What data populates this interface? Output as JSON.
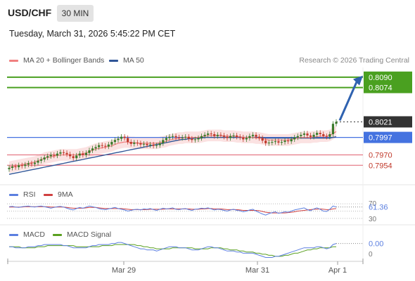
{
  "header": {
    "symbol": "USD/CHF",
    "timeframe": "30 MIN",
    "datetime": "Tuesday, March 31, 2026 5:45:22 PM CET"
  },
  "credit": "Research © 2026 Trading Central",
  "colors": {
    "ma20": "#f08080",
    "ma50": "#2f5597",
    "bollinger_fill": "#f9d5d5",
    "target_line": "#4aa020",
    "current_line": "#4472e0",
    "support_line": "#e06070",
    "arrow": "#2f62b0",
    "candle_up": "#3a7a2a",
    "candle_down": "#c0392b",
    "rsi": "#5b7fe0",
    "rsi_ma": "#d04040",
    "macd": "#5b7fe0",
    "macd_signal": "#5aa020"
  },
  "chart_data": {
    "type": "candlestick",
    "title": "USD/CHF 30 MIN",
    "x_ticks": [
      "Mar 29",
      "Mar 31",
      "Apr 1"
    ],
    "legend": [
      {
        "name": "MA 20 + Bollinger Bands",
        "color": "#f08080"
      },
      {
        "name": "MA 50",
        "color": "#2f5597"
      }
    ],
    "price_range": [
      0.7925,
      0.8105
    ],
    "levels": [
      {
        "label": "0.8090",
        "value": 0.809,
        "kind": "target"
      },
      {
        "label": "0.8074",
        "value": 0.8074,
        "kind": "target"
      },
      {
        "label": "0.8021",
        "value": 0.8021,
        "kind": "current"
      },
      {
        "label": "0.7997",
        "value": 0.7997,
        "kind": "pivot"
      },
      {
        "label": "0.7970",
        "value": 0.797,
        "kind": "support"
      },
      {
        "label": "0.7954",
        "value": 0.7954,
        "kind": "support"
      }
    ],
    "close_series": [
      0.795,
      0.7952,
      0.7951,
      0.7954,
      0.7953,
      0.7955,
      0.7957,
      0.7956,
      0.7958,
      0.7961,
      0.7963,
      0.7966,
      0.7968,
      0.797,
      0.7969,
      0.7972,
      0.7974,
      0.7973,
      0.7971,
      0.7968,
      0.7965,
      0.7969,
      0.7972,
      0.797,
      0.7973,
      0.7977,
      0.798,
      0.7982,
      0.7985,
      0.7984,
      0.7983,
      0.7986,
      0.799,
      0.7993,
      0.7995,
      0.7998,
      0.7996,
      0.799,
      0.7987,
      0.7989,
      0.7988,
      0.7986,
      0.7987,
      0.7985,
      0.7986,
      0.7984,
      0.7985,
      0.7988,
      0.7993,
      0.7996,
      0.7998,
      0.7999,
      0.7997,
      0.7996,
      0.7997,
      0.7998,
      0.7995,
      0.7993,
      0.7994,
      0.7996,
      0.7999,
      0.8001,
      0.8003,
      0.8002,
      0.7999,
      0.8001,
      0.8,
      0.7998,
      0.7996,
      0.7999,
      0.8,
      0.7998,
      0.7997,
      0.7994,
      0.7996,
      0.7999,
      0.8001,
      0.7998,
      0.7996,
      0.7992,
      0.7988,
      0.7989,
      0.799,
      0.7991,
      0.7989,
      0.799,
      0.7992,
      0.7991,
      0.7994,
      0.7997,
      0.7999,
      0.8001,
      0.8003,
      0.8,
      0.7998,
      0.8001,
      0.8004,
      0.8002,
      0.7999,
      0.7998,
      0.8002,
      0.8018,
      0.8021
    ],
    "ma20_series": [
      0.7951,
      0.7952,
      0.7953,
      0.7954,
      0.7955,
      0.7956,
      0.7957,
      0.7958,
      0.7959,
      0.7961,
      0.7963,
      0.7965,
      0.7966,
      0.7967,
      0.7968,
      0.7969,
      0.797,
      0.797,
      0.797,
      0.797,
      0.797,
      0.797,
      0.7971,
      0.7972,
      0.7973,
      0.7975,
      0.7977,
      0.7979,
      0.798,
      0.7981,
      0.7982,
      0.7983,
      0.7984,
      0.7986,
      0.7988,
      0.7989,
      0.799,
      0.799,
      0.7989,
      0.7989,
      0.7988,
      0.7988,
      0.7988,
      0.7988,
      0.7988,
      0.7988,
      0.7988,
      0.7989,
      0.799,
      0.7991,
      0.7993,
      0.7994,
      0.7995,
      0.7996,
      0.7996,
      0.7997,
      0.7997,
      0.7997,
      0.7997,
      0.7997,
      0.7998,
      0.7999,
      0.8,
      0.8,
      0.8,
      0.8,
      0.8,
      0.7999,
      0.7999,
      0.7999,
      0.7999,
      0.7998,
      0.7998,
      0.7997,
      0.7997,
      0.7997,
      0.7997,
      0.7996,
      0.7996,
      0.7995,
      0.7994,
      0.7993,
      0.7993,
      0.7993,
      0.7993,
      0.7993,
      0.7993,
      0.7993,
      0.7994,
      0.7995,
      0.7996,
      0.7997,
      0.7997,
      0.7997,
      0.7997,
      0.7998,
      0.7998,
      0.7999,
      0.7999,
      0.7999,
      0.8,
      0.8003,
      0.8006
    ],
    "ma50_series": [
      0.794,
      0.7941,
      0.7942,
      0.7943,
      0.7944,
      0.7945,
      0.7946,
      0.7947,
      0.7948,
      0.7949,
      0.795,
      0.7951,
      0.7952,
      0.7953,
      0.7954,
      0.7955,
      0.7956,
      0.7957,
      0.7958,
      0.7959,
      0.796,
      0.7961,
      0.7962,
      0.7963,
      0.7964,
      0.7965,
      0.7966,
      0.7967,
      0.7968,
      0.7969,
      0.797,
      0.7971,
      0.7972,
      0.7973,
      0.7974,
      0.7975,
      0.7976,
      0.7977,
      0.7978,
      0.7979,
      0.798,
      0.7981,
      0.7982,
      0.7983,
      0.7984,
      0.7985,
      0.7986,
      0.7987,
      0.7988,
      0.7989,
      0.799,
      0.7991,
      0.7992,
      0.7993,
      0.7994,
      0.7994,
      0.7995,
      0.7995,
      0.7996,
      0.7996,
      0.7996,
      0.7997,
      0.7997,
      0.7997,
      0.7997,
      0.7997,
      0.7997,
      0.7997,
      0.7997,
      0.7997,
      0.7997,
      0.7997,
      0.7997,
      0.7997,
      0.7997,
      0.7997,
      0.7997,
      0.7997,
      0.7997,
      0.7997,
      0.7996,
      0.7996,
      0.7996,
      0.7996,
      0.7996,
      0.7996,
      0.7996,
      0.7996,
      0.7996,
      0.7996,
      0.7996,
      0.7996,
      0.7996,
      0.7996,
      0.7996,
      0.7996,
      0.7996,
      0.7996,
      0.7996,
      0.7996,
      0.7996,
      0.7997,
      0.7998
    ],
    "rsi": {
      "legend": [
        {
          "name": "RSI",
          "color": "#5b7fe0"
        },
        {
          "name": "9MA",
          "color": "#d04040"
        }
      ],
      "levels": [
        "70",
        "30"
      ],
      "current_label": "61.36",
      "range": [
        30,
        70
      ],
      "series": [
        62,
        63,
        61,
        60,
        62,
        63,
        64,
        62,
        61,
        63,
        64,
        62,
        60,
        58,
        60,
        62,
        63,
        61,
        58,
        55,
        53,
        57,
        60,
        58,
        61,
        64,
        62,
        60,
        57,
        55,
        54,
        56,
        58,
        60,
        57,
        55,
        53,
        50,
        52,
        54,
        55,
        53,
        56,
        55,
        57,
        54,
        52,
        55,
        58,
        56,
        57,
        59,
        55,
        54,
        56,
        57,
        54,
        52,
        55,
        56,
        58,
        57,
        59,
        56,
        53,
        55,
        54,
        52,
        50,
        53,
        55,
        52,
        51,
        48,
        50,
        53,
        55,
        50,
        46,
        42,
        39,
        43,
        46,
        48,
        44,
        46,
        48,
        47,
        50,
        53,
        55,
        57,
        59,
        54,
        51,
        56,
        59,
        55,
        50,
        49,
        55,
        64,
        61.36
      ],
      "ma_series": [
        61,
        61,
        61,
        61,
        61,
        62,
        62,
        62,
        62,
        62,
        62,
        62,
        62,
        61,
        61,
        61,
        61,
        61,
        60,
        59,
        58,
        58,
        58,
        58,
        59,
        60,
        60,
        60,
        59,
        58,
        57,
        57,
        57,
        57,
        57,
        57,
        56,
        55,
        54,
        54,
        54,
        54,
        54,
        54,
        55,
        55,
        55,
        55,
        55,
        56,
        56,
        56,
        56,
        56,
        56,
        56,
        56,
        55,
        55,
        55,
        56,
        56,
        57,
        57,
        56,
        56,
        56,
        55,
        54,
        54,
        54,
        54,
        53,
        52,
        52,
        52,
        52,
        52,
        51,
        49,
        47,
        46,
        45,
        45,
        45,
        45,
        45,
        46,
        47,
        48,
        50,
        51,
        52,
        53,
        54,
        55,
        55,
        56,
        55,
        54,
        54,
        56,
        57
      ]
    },
    "macd": {
      "legend": [
        {
          "name": "MACD",
          "color": "#5b7fe0"
        },
        {
          "name": "MACD Signal",
          "color": "#5aa020"
        }
      ],
      "current_label": "0.00",
      "zero_label": "0",
      "range": [
        -0.0009,
        0.0008
      ],
      "series": [
        0.0002,
        0.0002,
        0.0001,
        0.0001,
        0.0001,
        0.0001,
        0.0002,
        0.0002,
        0.0002,
        0.0003,
        0.0003,
        0.0004,
        0.0004,
        0.0004,
        0.0004,
        0.0004,
        0.0004,
        0.0003,
        0.0003,
        0.0002,
        0.0001,
        0.0001,
        0.0001,
        0.0001,
        0.0001,
        0.0002,
        0.0003,
        0.0003,
        0.0004,
        0.0004,
        0.0004,
        0.0004,
        0.0005,
        0.0005,
        0.0006,
        0.0006,
        0.0005,
        0.0004,
        0.0003,
        0.0002,
        0.0001,
        0.0,
        0.0,
        -0.0001,
        -0.0001,
        -0.0001,
        -0.0002,
        -0.0001,
        0.0,
        0.0001,
        0.0002,
        0.0002,
        0.0002,
        0.0001,
        0.0001,
        0.0001,
        0.0,
        -0.0001,
        -0.0001,
        -0.0001,
        0.0,
        0.0001,
        0.0002,
        0.0002,
        0.0001,
        0.0001,
        0.0,
        -0.0001,
        -0.0002,
        -0.0002,
        -0.0002,
        -0.0003,
        -0.0003,
        -0.0004,
        -0.0004,
        -0.0004,
        -0.0004,
        -0.0005,
        -0.0006,
        -0.0007,
        -0.0008,
        -0.0008,
        -0.0008,
        -0.0007,
        -0.0007,
        -0.0006,
        -0.0005,
        -0.0004,
        -0.0003,
        -0.0002,
        -0.0001,
        0.0,
        0.0001,
        0.0001,
        0.0001,
        0.0001,
        0.0002,
        0.0002,
        0.0001,
        0.0,
        0.0001,
        0.0004,
        0.0005
      ],
      "signal_series": [
        0.0002,
        0.0002,
        0.0002,
        0.0002,
        0.0001,
        0.0001,
        0.0001,
        0.0001,
        0.0001,
        0.0002,
        0.0002,
        0.0002,
        0.0003,
        0.0003,
        0.0003,
        0.0003,
        0.0003,
        0.0003,
        0.0003,
        0.0003,
        0.0003,
        0.0002,
        0.0002,
        0.0002,
        0.0002,
        0.0002,
        0.0002,
        0.0002,
        0.0002,
        0.0003,
        0.0003,
        0.0003,
        0.0003,
        0.0004,
        0.0004,
        0.0004,
        0.0004,
        0.0004,
        0.0004,
        0.0004,
        0.0003,
        0.0003,
        0.0002,
        0.0002,
        0.0001,
        0.0001,
        0.0,
        0.0,
        0.0,
        0.0,
        0.0,
        0.0001,
        0.0001,
        0.0001,
        0.0001,
        0.0001,
        0.0001,
        0.0001,
        0.0,
        0.0,
        0.0,
        0.0,
        0.0,
        0.0001,
        0.0001,
        0.0001,
        0.0001,
        0.0,
        0.0,
        -0.0001,
        -0.0001,
        -0.0001,
        -0.0002,
        -0.0002,
        -0.0003,
        -0.0003,
        -0.0003,
        -0.0004,
        -0.0004,
        -0.0005,
        -0.0005,
        -0.0006,
        -0.0006,
        -0.0007,
        -0.0007,
        -0.0007,
        -0.0006,
        -0.0006,
        -0.0005,
        -0.0004,
        -0.0004,
        -0.0003,
        -0.0002,
        -0.0001,
        -0.0001,
        0.0,
        0.0,
        0.0001,
        0.0001,
        0.0001,
        0.0001,
        0.0002,
        0.0002
      ]
    }
  }
}
